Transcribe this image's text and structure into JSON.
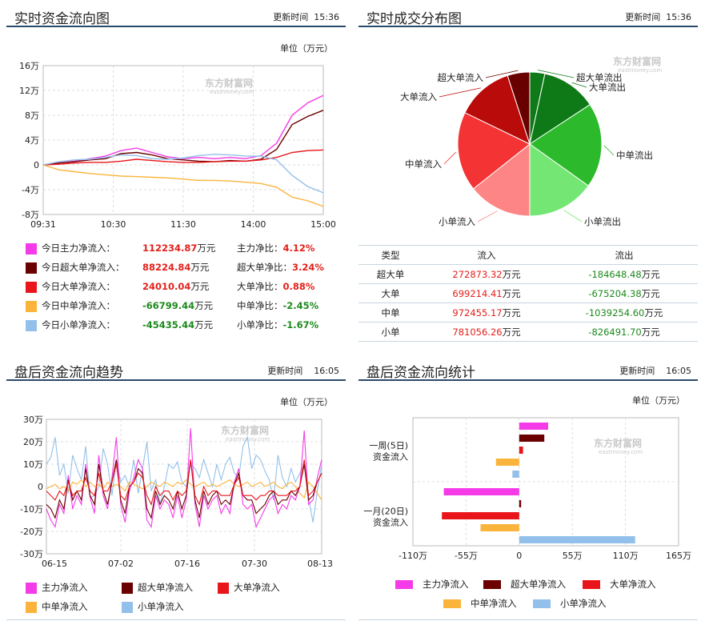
{
  "panels": {
    "realtime_flow": {
      "title": "实时资金流向图",
      "update_label": "更新时间",
      "update_time": "15:36",
      "unit": "单位（万元）"
    },
    "realtime_dist": {
      "title": "实时成交分布图",
      "update_label": "更新时间",
      "update_time": "15:36"
    },
    "after_trend": {
      "title": "盘后资金流向趋势",
      "update_label": "更新时间",
      "update_time": "16:05",
      "unit": "单位（万元）"
    },
    "after_stats": {
      "title": "盘后资金流向统计",
      "update_label": "更新时间",
      "update_time": "16:05",
      "unit": "单位（万元）"
    }
  },
  "watermark": {
    "cn": "东方财富网",
    "en": "eastmoney.com"
  },
  "colors": {
    "main": "#f53be8",
    "super": "#6b0000",
    "large": "#e8161b",
    "medium": "#fab43c",
    "small": "#93c0ea"
  },
  "flow_summary": [
    {
      "label": "今日主力净流入：",
      "value": "112234.87",
      "unit": "万元",
      "ratio_label": "主力净比：",
      "ratio": "4.12%",
      "color": "#f53be8",
      "sign": "pos"
    },
    {
      "label": "今日超大单净流入：",
      "value": "88224.84",
      "unit": "万元",
      "ratio_label": "超大单净比：",
      "ratio": "3.24%",
      "color": "#6b0000",
      "sign": "pos"
    },
    {
      "label": "今日大单净流入：",
      "value": "24010.04",
      "unit": "万元",
      "ratio_label": "大单净比：",
      "ratio": "0.88%",
      "color": "#e8161b",
      "sign": "pos"
    },
    {
      "label": "今日中单净流入：",
      "value": "-66799.44",
      "unit": "万元",
      "ratio_label": "中单净比：",
      "ratio": "-2.45%",
      "color": "#fab43c",
      "sign": "neg"
    },
    {
      "label": "今日小单净流入：",
      "value": "-45435.44",
      "unit": "万元",
      "ratio_label": "小单净比：",
      "ratio": "-1.67%",
      "color": "#93c0ea",
      "sign": "neg"
    }
  ],
  "dist_table": {
    "headers": [
      "类型",
      "流入",
      "流出"
    ],
    "unit": "万元",
    "rows": [
      {
        "type": "超大单",
        "in": "272873.32",
        "out": "-184648.48"
      },
      {
        "type": "大单",
        "in": "699214.41",
        "out": "-675204.38"
      },
      {
        "type": "中单",
        "in": "972455.17",
        "out": "-1039254.60"
      },
      {
        "type": "小单",
        "in": "781056.26",
        "out": "-826491.70"
      }
    ]
  },
  "chart_data": [
    {
      "type": "line",
      "id": "realtime_flow",
      "x_ticks": [
        "09:31",
        "10:30",
        "11:30",
        "14:00",
        "15:00"
      ],
      "y_ticks": [
        "16万",
        "12万",
        "8万",
        "4万",
        "0",
        "-4万",
        "-8万"
      ],
      "ylim": [
        -8,
        16
      ],
      "series": [
        {
          "key": "main",
          "values": [
            0,
            0.3,
            0.6,
            1.0,
            1.4,
            2.3,
            2.7,
            2.0,
            1.3,
            1.0,
            1.2,
            1.0,
            1.2,
            1.0,
            1.5,
            3.5,
            8.0,
            10.0,
            11.2
          ]
        },
        {
          "key": "super",
          "values": [
            0,
            0.3,
            0.5,
            0.8,
            1.0,
            1.8,
            2.0,
            1.6,
            1.0,
            0.8,
            0.6,
            0.5,
            0.7,
            0.6,
            0.9,
            2.5,
            6.5,
            7.8,
            8.8
          ]
        },
        {
          "key": "large",
          "values": [
            0,
            0.1,
            0.3,
            0.4,
            0.4,
            0.6,
            0.9,
            0.7,
            0.5,
            0.4,
            0.4,
            0.5,
            0.6,
            0.6,
            0.8,
            1.2,
            2.0,
            2.3,
            2.4
          ]
        },
        {
          "key": "medium",
          "values": [
            0,
            -0.8,
            -1.1,
            -1.4,
            -1.6,
            -1.8,
            -1.9,
            -2.0,
            -2.1,
            -2.3,
            -2.5,
            -2.5,
            -2.6,
            -2.8,
            -3.0,
            -3.6,
            -5.2,
            -5.8,
            -6.7
          ]
        },
        {
          "key": "small",
          "values": [
            0,
            0.5,
            0.8,
            0.9,
            1.2,
            1.6,
            1.5,
            1.0,
            0.9,
            1.1,
            1.5,
            1.7,
            1.6,
            1.4,
            1.4,
            0.8,
            -1.7,
            -3.5,
            -4.5
          ]
        }
      ]
    },
    {
      "type": "pie",
      "id": "realtime_dist",
      "slices": [
        {
          "label": "超大单流出",
          "value": 184648.48,
          "color": "#0e7a17"
        },
        {
          "label": "大单流出",
          "value": 675204.38,
          "color": "#0e7a17"
        },
        {
          "label": "中单流出",
          "value": 1039254.6,
          "color": "#2cba2c"
        },
        {
          "label": "小单流出",
          "value": 826491.7,
          "color": "#74e674"
        },
        {
          "label": "小单流入",
          "value": 781056.26,
          "color": "#fd8585"
        },
        {
          "label": "中单流入",
          "value": 972455.17,
          "color": "#f43434"
        },
        {
          "label": "大单流入",
          "value": 699214.41,
          "color": "#ba0b0b"
        },
        {
          "label": "超大单流入",
          "value": 272873.32,
          "color": "#690000"
        }
      ]
    },
    {
      "type": "line",
      "id": "after_trend",
      "x_ticks": [
        "06-15",
        "07-02",
        "07-16",
        "07-30",
        "08-13"
      ],
      "y_ticks": [
        "30万",
        "20万",
        "10万",
        "0",
        "-10万",
        "-20万",
        "-30万"
      ],
      "ylim": [
        -30,
        30
      ],
      "legend": [
        "主力净流入",
        "超大单净流入",
        "大单净流入",
        "中单净流入",
        "小单净流入"
      ],
      "series": [
        {
          "key": "small",
          "values": [
            10,
            13,
            22,
            5,
            10,
            -3,
            14,
            8,
            3,
            18,
            -5,
            -4,
            0,
            17,
            10,
            -4,
            12,
            2,
            5,
            0,
            12,
            -3,
            8,
            20,
            -2,
            3,
            -8,
            0,
            10,
            8,
            11,
            2,
            0,
            10,
            8,
            4,
            12,
            6,
            0,
            10,
            3,
            10,
            13,
            6,
            4,
            18,
            22,
            8,
            14,
            12,
            7,
            3,
            -6,
            14,
            4,
            0,
            8,
            2,
            6,
            10,
            -5,
            -16,
            -2,
            10
          ]
        },
        {
          "key": "medium",
          "values": [
            -1,
            0,
            1,
            -1,
            0,
            -2,
            2,
            1,
            3,
            0,
            2,
            0,
            1,
            -1,
            2,
            0,
            1,
            0,
            -2,
            2,
            1,
            0,
            -1,
            0,
            2,
            1,
            0,
            2,
            1,
            0,
            2,
            1,
            3,
            1,
            0,
            1,
            2,
            0,
            1,
            0,
            1,
            2,
            3,
            1,
            0,
            1,
            2,
            0,
            1,
            2,
            0,
            1,
            2,
            0,
            -1,
            1,
            2,
            0,
            -3,
            -5,
            2,
            0,
            -3,
            -6
          ]
        },
        {
          "key": "main",
          "values": [
            -10,
            -15,
            -18,
            -8,
            -12,
            5,
            -10,
            -4,
            -8,
            10,
            -5,
            -12,
            14,
            -4,
            -10,
            4,
            22,
            -8,
            -16,
            -2,
            4,
            12,
            8,
            -15,
            -18,
            -4,
            -10,
            -6,
            -8,
            -14,
            -4,
            -14,
            -6,
            26,
            -8,
            -18,
            -4,
            -10,
            -6,
            -4,
            -12,
            -8,
            -12,
            2,
            8,
            -8,
            -10,
            -8,
            -18,
            -14,
            -10,
            -6,
            -4,
            -12,
            -8,
            -10,
            -4,
            -6,
            0,
            25,
            -8,
            -6,
            4,
            12
          ]
        },
        {
          "key": "super",
          "values": [
            -8,
            -10,
            -14,
            -6,
            -10,
            3,
            -6,
            -2,
            -6,
            8,
            -4,
            -8,
            10,
            -2,
            -8,
            2,
            12,
            -6,
            -12,
            0,
            2,
            8,
            6,
            -10,
            -14,
            -2,
            -8,
            -4,
            -6,
            -10,
            -2,
            -10,
            -4,
            12,
            -6,
            -14,
            -2,
            -8,
            -4,
            -2,
            -8,
            -6,
            -8,
            1,
            6,
            -4,
            -6,
            -6,
            -12,
            -10,
            -8,
            -4,
            -2,
            -8,
            -6,
            -6,
            -2,
            -4,
            0,
            10,
            -6,
            -4,
            2,
            6
          ]
        },
        {
          "key": "large",
          "values": [
            -2,
            -4,
            -6,
            -2,
            -4,
            2,
            -4,
            -2,
            -2,
            4,
            -2,
            -4,
            6,
            -2,
            -2,
            2,
            10,
            -4,
            -6,
            0,
            2,
            6,
            4,
            -4,
            -8,
            0,
            -4,
            -2,
            -2,
            -6,
            -2,
            -4,
            -2,
            12,
            -4,
            -8,
            0,
            -4,
            -2,
            -2,
            -4,
            -4,
            -4,
            1,
            4,
            -4,
            -4,
            -4,
            -6,
            -4,
            -4,
            -2,
            -2,
            -4,
            -4,
            -4,
            -2,
            -2,
            0,
            12,
            -4,
            -2,
            2,
            6
          ]
        }
      ]
    },
    {
      "type": "bar",
      "id": "after_stats",
      "orientation": "horizontal",
      "categories": [
        "一周(5日)资金流入",
        "一月(20日)资金流入"
      ],
      "category_lines": [
        [
          "一周(5日)",
          "资金流入"
        ],
        [
          "一月(20日)",
          "资金流入"
        ]
      ],
      "x_ticks": [
        "-110万",
        "-55万",
        "0",
        "55万",
        "110万",
        "165万"
      ],
      "xlim": [
        -110,
        165
      ],
      "legend": [
        "主力净流入",
        "超大单净流入",
        "大单净流入",
        "中单净流入",
        "小单净流入"
      ],
      "series": [
        {
          "key": "main",
          "values": [
            30,
            -78
          ]
        },
        {
          "key": "super",
          "values": [
            26,
            2
          ]
        },
        {
          "key": "large",
          "values": [
            4,
            -80
          ]
        },
        {
          "key": "medium",
          "values": [
            -24,
            -40
          ]
        },
        {
          "key": "small",
          "values": [
            -7,
            120
          ]
        }
      ]
    }
  ]
}
